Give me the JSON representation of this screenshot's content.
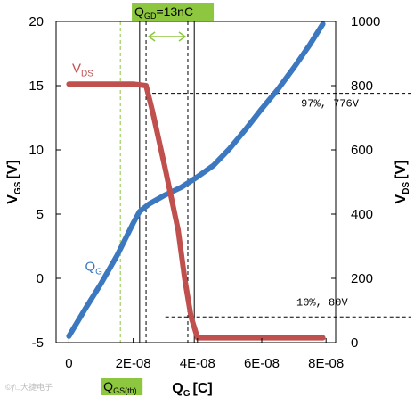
{
  "watermark": "©ƒ□大捷电子",
  "chart_data": {
    "type": "line",
    "x_axis": {
      "label": "Q",
      "label_sub": "G",
      "label_unit": "[C]",
      "range": [
        -4e-09,
        8.3e-08
      ],
      "ticks": [
        0,
        2e-08,
        4e-08,
        6e-08,
        8e-08
      ],
      "tick_labels": [
        "0",
        "2E-08",
        "4E-08",
        "6E-08",
        "8E-08"
      ]
    },
    "y_left": {
      "label": "V",
      "label_sub": "GS",
      "label_unit": "[V]",
      "range": [
        -5,
        20
      ],
      "ticks": [
        -5,
        0,
        5,
        10,
        15,
        20
      ],
      "tick_labels": [
        "-5",
        "0",
        "5",
        "10",
        "15",
        "20"
      ]
    },
    "y_right": {
      "label": "V",
      "label_sub": "DS",
      "label_unit": "[V]",
      "range": [
        0,
        1000
      ],
      "ticks": [
        0,
        200,
        400,
        600,
        800,
        1000
      ],
      "tick_labels": [
        "0",
        "200",
        "400",
        "600",
        "800",
        "1000"
      ]
    },
    "series": [
      {
        "name": "Q",
        "name_sub": "G",
        "axis": "left",
        "color": "#3c78c0",
        "label_at": [
          5e-09,
          0.6
        ],
        "x": [
          0,
          5e-09,
          1e-08,
          1.5e-08,
          2e-08,
          2.2e-08,
          2.5e-08,
          3e-08,
          3.5e-08,
          4e-08,
          4.5e-08,
          5e-08,
          5.5e-08,
          6e-08,
          6.5e-08,
          7e-08,
          7.5e-08,
          7.9e-08
        ],
        "y": [
          -4.5,
          -2.4,
          -0.4,
          1.8,
          4.3,
          5.2,
          5.8,
          6.5,
          7.1,
          7.9,
          8.8,
          10.1,
          11.6,
          13.2,
          14.7,
          16.4,
          18.2,
          19.8
        ]
      },
      {
        "name": "V",
        "name_sub": "DS",
        "axis": "right",
        "color": "#c0504d",
        "label_at": [
          1e-09,
          16.0
        ],
        "x": [
          0,
          1e-08,
          2e-08,
          2.4e-08,
          2.6e-08,
          3e-08,
          3.4e-08,
          3.6e-08,
          3.8e-08,
          4e-08,
          5e-08,
          6e-08,
          7e-08,
          7.9e-08
        ],
        "y": [
          805,
          805,
          805,
          800,
          720,
          540,
          350,
          200,
          80,
          15,
          15,
          15,
          15,
          15
        ]
      }
    ],
    "reference_lines": [
      {
        "orient": "v",
        "x": 1.6e-08,
        "color": "#8dc63f",
        "style": "dashed"
      },
      {
        "orient": "v",
        "x": 2.2e-08,
        "color": "#000000",
        "style": "solid"
      },
      {
        "orient": "v",
        "x": 2.4e-08,
        "color": "#000000",
        "style": "dashed"
      },
      {
        "orient": "v",
        "x": 3.7e-08,
        "color": "#000000",
        "style": "dashed"
      },
      {
        "orient": "v",
        "x": 3.9e-08,
        "color": "#000000",
        "style": "solid"
      },
      {
        "orient": "h",
        "y_right": 776,
        "from_x": 2.4e-08,
        "color": "#000000",
        "style": "dashed"
      },
      {
        "orient": "h",
        "y_right": 80,
        "from_x": 3e-08,
        "color": "#000000",
        "style": "dashed"
      }
    ],
    "annotations": [
      {
        "text": "97%, 776V",
        "x": 8.12e-08,
        "y_right": 735
      },
      {
        "text": "10%, 80V",
        "x": 7.88e-08,
        "y_right": 115
      }
    ],
    "qgd_box": {
      "label": "Q",
      "label_sub": "GD",
      "label_value": "=13nC",
      "from_x": 2.4e-08,
      "to_x": 3.7e-08
    },
    "qgs_label": {
      "label": "Q",
      "label_sub": "GS(th)",
      "x": 1.6e-08
    },
    "grid": false,
    "legend": "none"
  }
}
